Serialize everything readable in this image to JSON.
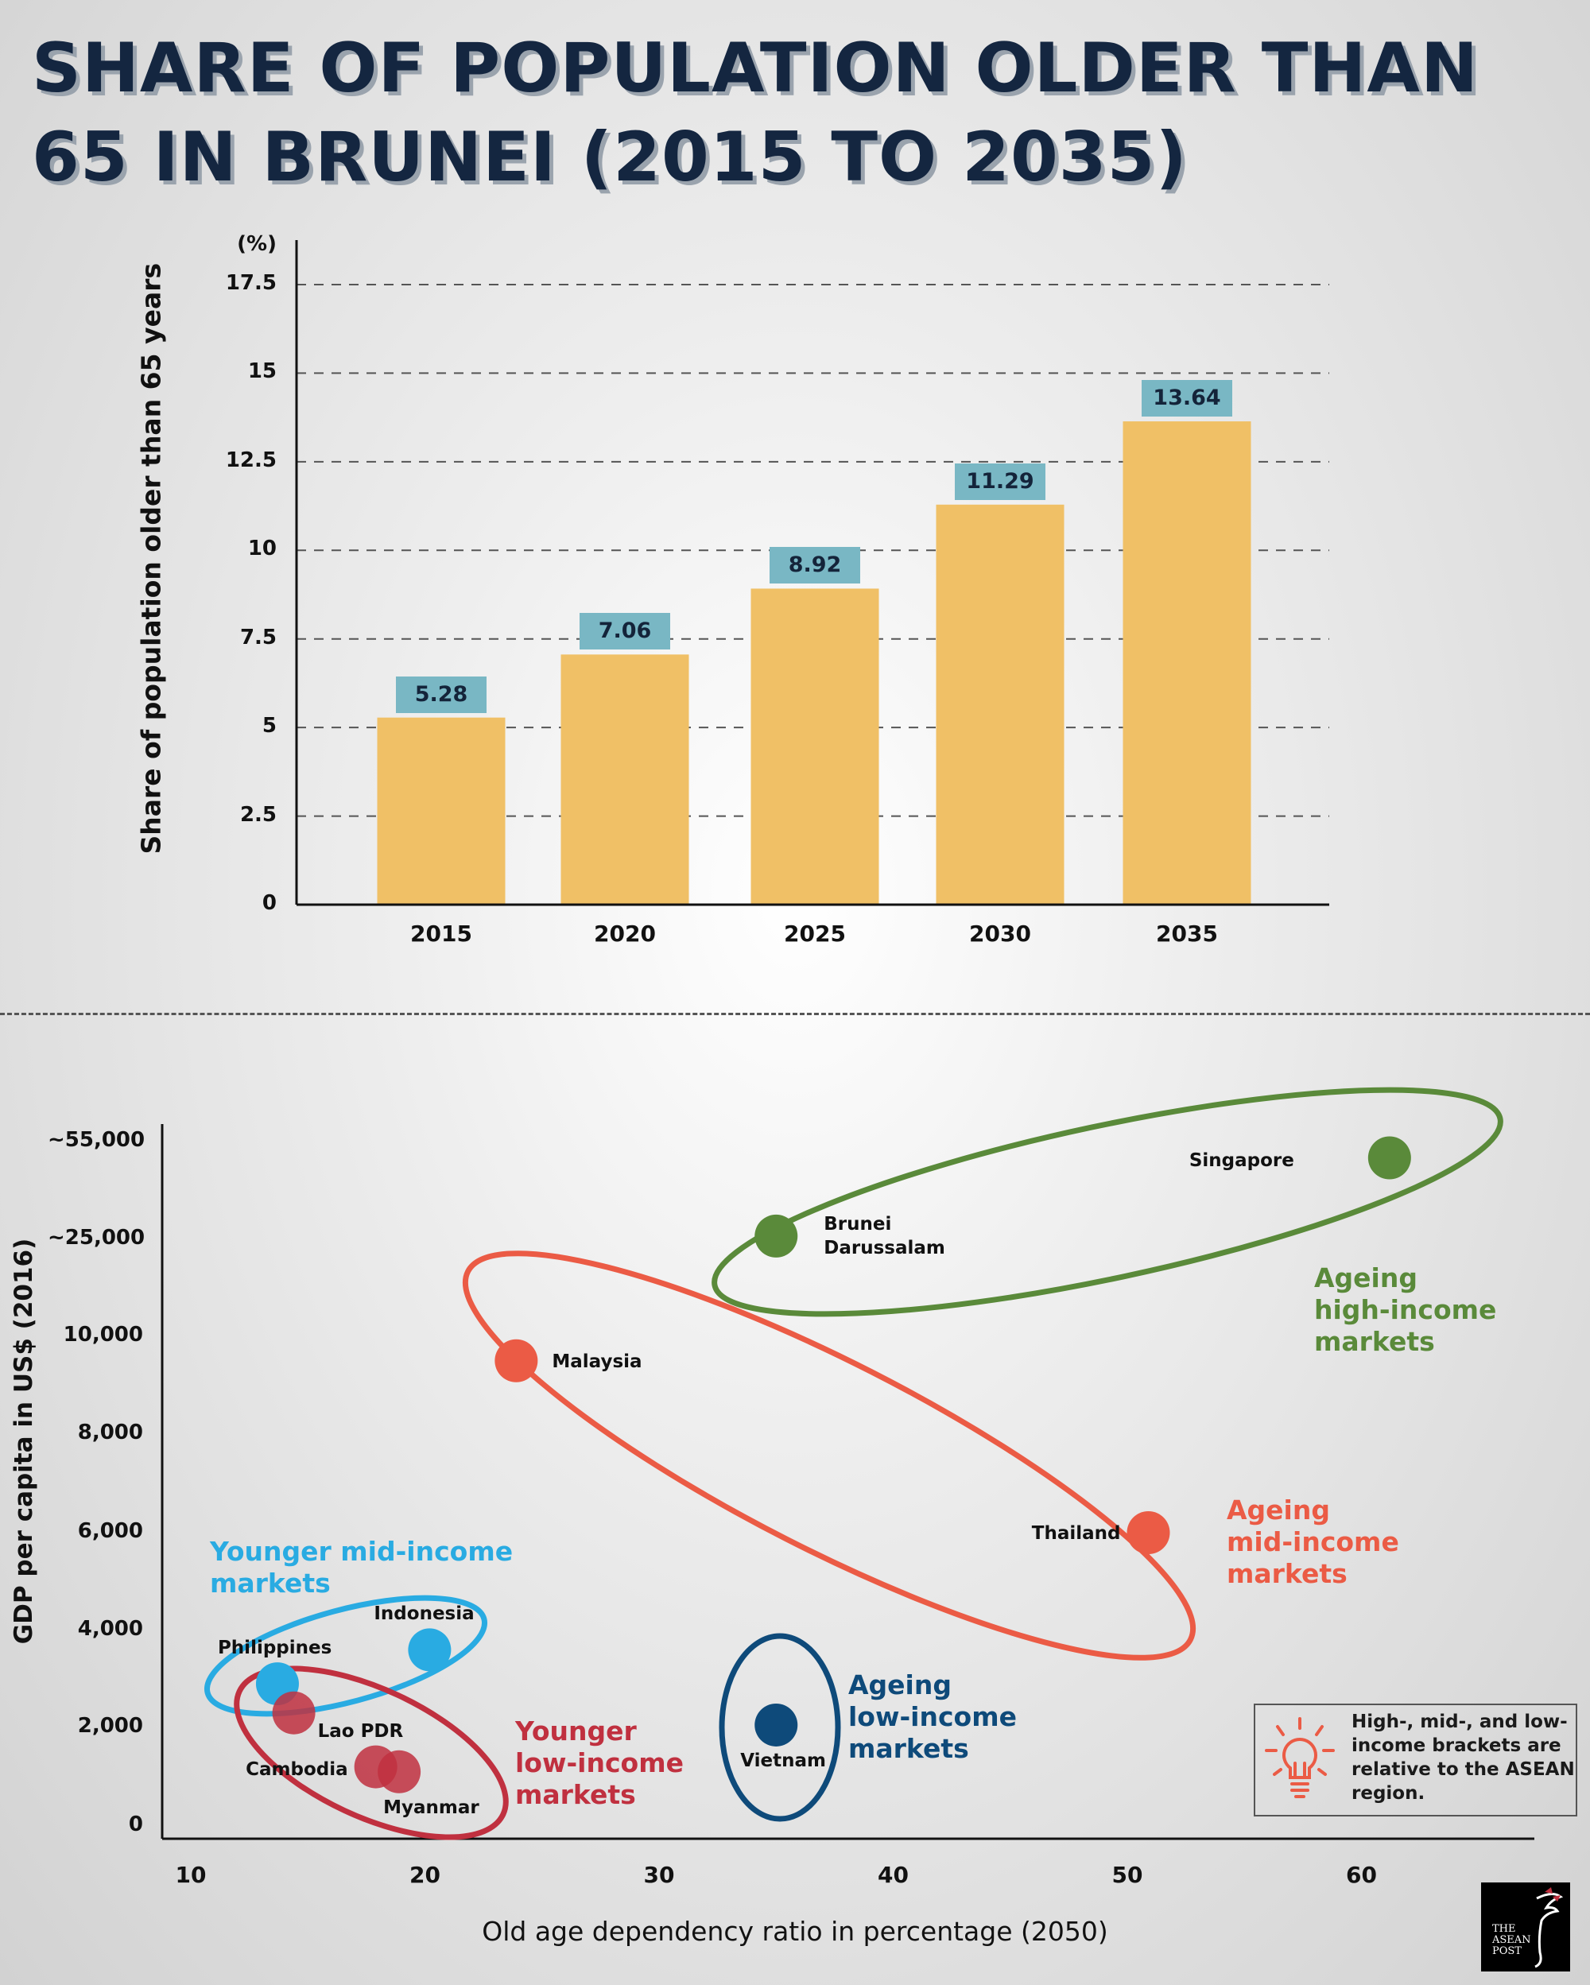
{
  "title": {
    "line1": "SHARE OF POPULATION OLDER THAN",
    "line2": "65 IN BRUNEI (2015 TO 2035)"
  },
  "colors": {
    "bar": "#F0C066",
    "value_label_bg": "#79B7C4",
    "title": "#142640",
    "high_income": "#5A8A3A",
    "mid_income": "#EB5B45",
    "younger_mid": "#29ABE2",
    "younger_low": "#C0303F",
    "low_income": "#0E4A7A"
  },
  "chart_data": [
    {
      "type": "bar",
      "title": "",
      "unit_label": "(%)",
      "xlabel": "",
      "ylabel": "Share of population older than 65 years",
      "categories": [
        "2015",
        "2020",
        "2025",
        "2030",
        "2035"
      ],
      "values": [
        5.28,
        7.06,
        8.92,
        11.29,
        13.64
      ],
      "value_labels": [
        "5.28",
        "7.06",
        "8.92",
        "11.29",
        "13.64"
      ],
      "ylim": [
        0,
        17.5
      ],
      "yticks": [
        "0",
        "2.5",
        "5",
        "7.5",
        "10",
        "12.5",
        "15",
        "17.5"
      ],
      "grid": "dashed horizontal"
    },
    {
      "type": "scatter",
      "xlabel": "Old age dependency ratio in percentage (2050)",
      "ylabel": "GDP per capita in US$ (2016)",
      "xlim": [
        10,
        67
      ],
      "xticks": [
        "10",
        "20",
        "30",
        "40",
        "50",
        "60"
      ],
      "yticks": [
        "0",
        "2,000",
        "4,000",
        "6,000",
        "8,000",
        "10,000",
        "~25,000",
        "~55,000"
      ],
      "ytick_values": [
        0,
        2000,
        4000,
        6000,
        8000,
        10000,
        25000,
        55000
      ],
      "y_scale": "non-linear (categorical breaks)",
      "points": [
        {
          "name": "Singapore",
          "x": 61.2,
          "y": 50000,
          "group": "high"
        },
        {
          "name": "Brunei Darussalam",
          "x": 35.0,
          "y": 26000,
          "group": "high"
        },
        {
          "name": "Malaysia",
          "x": 23.9,
          "y": 9500,
          "group": "mid"
        },
        {
          "name": "Thailand",
          "x": 50.9,
          "y": 6000,
          "group": "mid"
        },
        {
          "name": "Indonesia",
          "x": 20.2,
          "y": 3600,
          "group": "ymid"
        },
        {
          "name": "Philippines",
          "x": 13.7,
          "y": 2900,
          "group": "ymid"
        },
        {
          "name": "Lao PDR",
          "x": 14.4,
          "y": 2300,
          "group": "ylow"
        },
        {
          "name": "Cambodia",
          "x": 17.9,
          "y": 1200,
          "group": "ylow"
        },
        {
          "name": "Myanmar",
          "x": 18.9,
          "y": 1100,
          "group": "ylow"
        },
        {
          "name": "Vietnam",
          "x": 35.0,
          "y": 2050,
          "group": "low"
        }
      ],
      "groups": {
        "high": "Ageing high-income markets",
        "mid": "Ageing mid-income markets",
        "ymid": "Younger mid-income markets",
        "ylow": "Younger low-income markets",
        "low": "Ageing low-income markets"
      },
      "group_label_lines": {
        "high": [
          "Ageing",
          "high-income",
          "markets"
        ],
        "mid": [
          "Ageing",
          "mid-income",
          "markets"
        ],
        "ymid": [
          "Younger mid-income",
          "markets"
        ],
        "ylow": [
          "Younger",
          "low-income",
          "markets"
        ],
        "low": [
          "Ageing",
          "low-income",
          "markets"
        ]
      },
      "note": "High-, mid-, and low-income brackets are relative to the ASEAN region.",
      "note_icon": "lightbulb-icon"
    }
  ],
  "logo": {
    "text": "THE ASEAN POST"
  }
}
